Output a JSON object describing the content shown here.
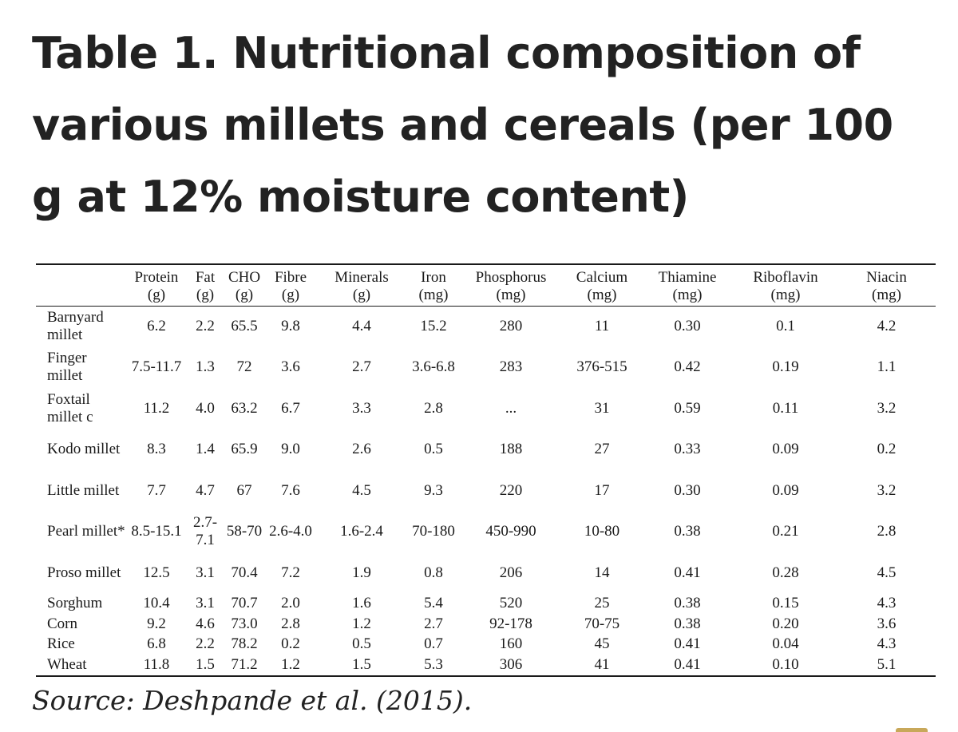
{
  "title": "Table 1. Nutritional composition of various millets and cereals (per 100 g at 12% moisture content)",
  "columns": [
    {
      "name": "Protein",
      "unit": "(g)"
    },
    {
      "name": "Fat",
      "unit": "(g)"
    },
    {
      "name": "CHO",
      "unit": "(g)"
    },
    {
      "name": "Fibre",
      "unit": "(g)"
    },
    {
      "name": "Minerals",
      "unit": "(g)"
    },
    {
      "name": "Iron",
      "unit": "(mg)"
    },
    {
      "name": "Phosphorus",
      "unit": "(mg)"
    },
    {
      "name": "Calcium",
      "unit": "(mg)"
    },
    {
      "name": "Thiamine",
      "unit": "(mg)"
    },
    {
      "name": "Riboflavin",
      "unit": "(mg)"
    },
    {
      "name": "Niacin",
      "unit": "(mg)"
    }
  ],
  "rows": [
    {
      "name": "Barnyard millet",
      "values": [
        "6.2",
        "2.2",
        "65.5",
        "9.8",
        "4.4",
        "15.2",
        "280",
        "11",
        "0.30",
        "0.1",
        "4.2"
      ]
    },
    {
      "name": "Finger millet",
      "values": [
        "7.5-11.7",
        "1.3",
        "72",
        "3.6",
        "2.7",
        "3.6-6.8",
        "283",
        "376-515",
        "0.42",
        "0.19",
        "1.1"
      ]
    },
    {
      "name": "Foxtail millet c",
      "values": [
        "11.2",
        "4.0",
        "63.2",
        "6.7",
        "3.3",
        "2.8",
        "...",
        "31",
        "0.59",
        "0.11",
        "3.2"
      ]
    },
    {
      "name": "Kodo millet",
      "values": [
        "8.3",
        "1.4",
        "65.9",
        "9.0",
        "2.6",
        "0.5",
        "188",
        "27",
        "0.33",
        "0.09",
        "0.2"
      ]
    },
    {
      "name": "Little millet",
      "values": [
        "7.7",
        "4.7",
        "67",
        "7.6",
        "4.5",
        "9.3",
        "220",
        "17",
        "0.30",
        "0.09",
        "3.2"
      ]
    },
    {
      "name": "Pearl millet*",
      "values": [
        "8.5-15.1",
        "2.7-7.1",
        "58-70",
        "2.6-4.0",
        "1.6-2.4",
        "70-180",
        "450-990",
        "10-80",
        "0.38",
        "0.21",
        "2.8"
      ]
    },
    {
      "name": "Proso millet",
      "values": [
        "12.5",
        "3.1",
        "70.4",
        "7.2",
        "1.9",
        "0.8",
        "206",
        "14",
        "0.41",
        "0.28",
        "4.5"
      ]
    },
    {
      "name": "Sorghum",
      "values": [
        "10.4",
        "3.1",
        "70.7",
        "2.0",
        "1.6",
        "5.4",
        "520",
        "25",
        "0.38",
        "0.15",
        "4.3"
      ]
    },
    {
      "name": "Corn",
      "values": [
        "9.2",
        "4.6",
        "73.0",
        "2.8",
        "1.2",
        "2.7",
        "92-178",
        "70-75",
        "0.38",
        "0.20",
        "3.6"
      ]
    },
    {
      "name": "Rice",
      "values": [
        "6.8",
        "2.2",
        "78.2",
        "0.2",
        "0.5",
        "0.7",
        "160",
        "45",
        "0.41",
        "0.04",
        "4.3"
      ]
    },
    {
      "name": "Wheat",
      "values": [
        "11.8",
        "1.5",
        "71.2",
        "1.2",
        "1.5",
        "5.3",
        "306",
        "41",
        "0.41",
        "0.10",
        "5.1"
      ]
    }
  ],
  "source": "Source: Deshpande et al. (2015)."
}
